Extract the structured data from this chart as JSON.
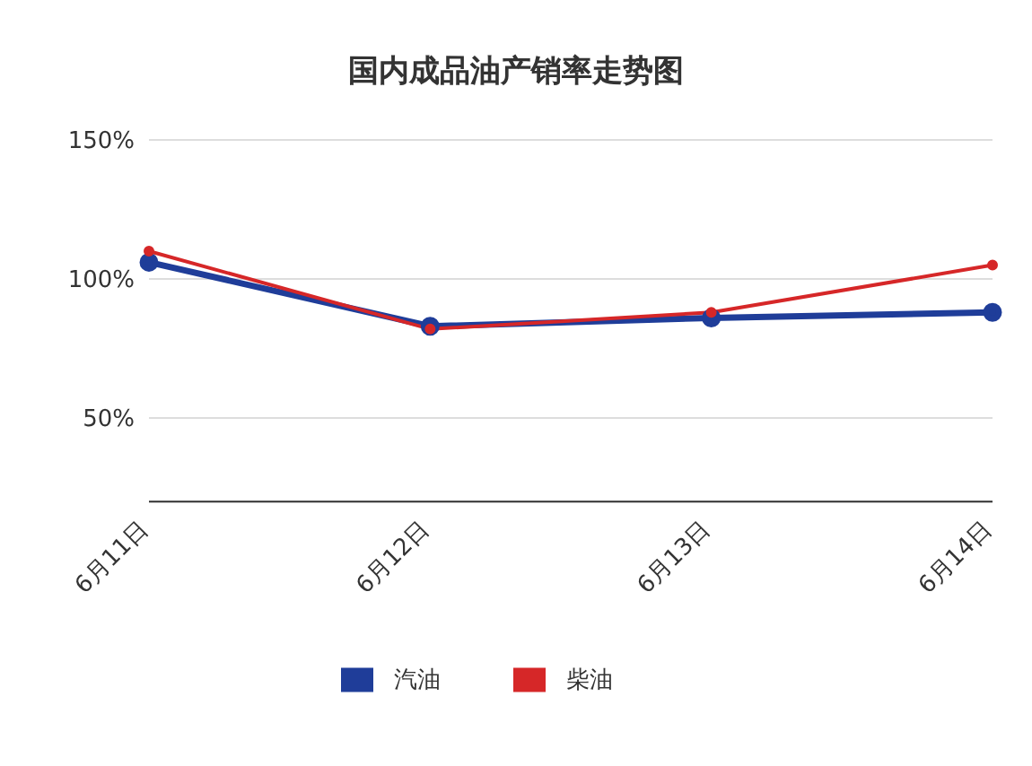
{
  "chart_data": {
    "type": "line",
    "title": "国内成品油产销率走势图",
    "categories": [
      "6月11日",
      "6月12日",
      "6月13日",
      "6月14日"
    ],
    "series": [
      {
        "name": "汽油",
        "color": "#1f3d99",
        "values": [
          106,
          83,
          86,
          88
        ]
      },
      {
        "name": "柴油",
        "color": "#d62728",
        "values": [
          110,
          82,
          88,
          105
        ]
      }
    ],
    "ylim": [
      20,
      150
    ],
    "yticks": [
      {
        "value": 50,
        "label": "50%"
      },
      {
        "value": 100,
        "label": "100%"
      },
      {
        "value": 150,
        "label": "150%"
      }
    ],
    "grid": "y",
    "legend": "bottom",
    "marker": "circle",
    "line_style": "solid"
  }
}
